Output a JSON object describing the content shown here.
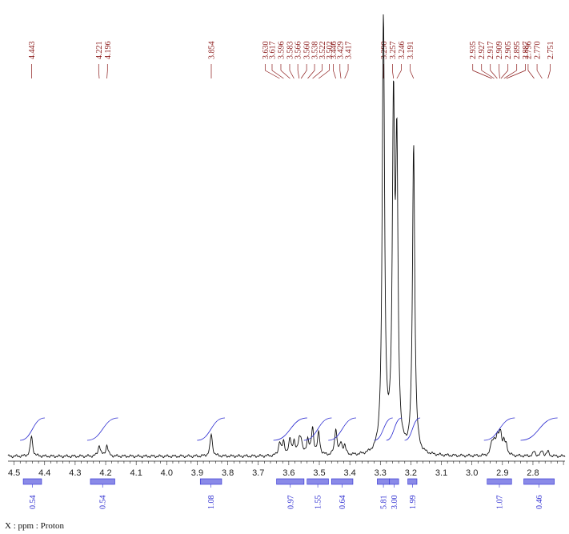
{
  "chart_data": {
    "type": "line",
    "xlabel": "X : ppm : Proton",
    "xlim": [
      4.52,
      2.695
    ],
    "axis_ticks": [
      "4.5",
      "4.4",
      "4.3",
      "4.2",
      "4.1",
      "4.0",
      "3.9",
      "3.8",
      "3.7",
      "3.6",
      "3.5",
      "3.4",
      "3.3",
      "3.2",
      "3.1",
      "3.0",
      "2.9",
      "2.8"
    ],
    "peak_labels": [
      "4.443",
      "4.221",
      "4.196",
      "3.854",
      "3.630",
      "3.617",
      "3.596",
      "3.583",
      "3.566",
      "3.560",
      "3.538",
      "3.522",
      "3.502",
      "3.446",
      "3.429",
      "3.417",
      "3.290",
      "3.257",
      "3.246",
      "3.191",
      "2.935",
      "2.927",
      "2.917",
      "2.909",
      "2.905",
      "2.895",
      "2.887",
      "2.796",
      "2.770",
      "2.751"
    ],
    "integrals": [
      {
        "from": 4.47,
        "to": 4.41,
        "value": "0.54"
      },
      {
        "from": 4.25,
        "to": 4.17,
        "value": "0.54"
      },
      {
        "from": 3.89,
        "to": 3.82,
        "value": "1.08"
      },
      {
        "from": 3.64,
        "to": 3.55,
        "value": "0.97"
      },
      {
        "from": 3.54,
        "to": 3.47,
        "value": "1.55"
      },
      {
        "from": 3.46,
        "to": 3.39,
        "value": "0.64"
      },
      {
        "from": 3.31,
        "to": 3.27,
        "value": "5.81"
      },
      {
        "from": 3.27,
        "to": 3.24,
        "value": "3.00"
      },
      {
        "from": 3.21,
        "to": 3.18,
        "value": "1.99"
      },
      {
        "from": 2.95,
        "to": 2.87,
        "value": "1.07"
      },
      {
        "from": 2.83,
        "to": 2.73,
        "value": "0.46"
      }
    ],
    "peaks": [
      {
        "ppm": 4.443,
        "h": 0.045
      },
      {
        "ppm": 4.221,
        "h": 0.025
      },
      {
        "ppm": 4.196,
        "h": 0.025
      },
      {
        "ppm": 3.854,
        "h": 0.05
      },
      {
        "ppm": 3.63,
        "h": 0.03
      },
      {
        "ppm": 3.617,
        "h": 0.03
      },
      {
        "ppm": 3.596,
        "h": 0.035
      },
      {
        "ppm": 3.583,
        "h": 0.03
      },
      {
        "ppm": 3.566,
        "h": 0.03
      },
      {
        "ppm": 3.56,
        "h": 0.03
      },
      {
        "ppm": 3.538,
        "h": 0.035
      },
      {
        "ppm": 3.522,
        "h": 0.06
      },
      {
        "ppm": 3.502,
        "h": 0.05
      },
      {
        "ppm": 3.446,
        "h": 0.06
      },
      {
        "ppm": 3.429,
        "h": 0.025
      },
      {
        "ppm": 3.417,
        "h": 0.02
      },
      {
        "ppm": 3.29,
        "h": 1.0
      },
      {
        "ppm": 3.257,
        "h": 0.75
      },
      {
        "ppm": 3.246,
        "h": 0.65
      },
      {
        "ppm": 3.191,
        "h": 0.7
      },
      {
        "ppm": 2.935,
        "h": 0.025
      },
      {
        "ppm": 2.927,
        "h": 0.03
      },
      {
        "ppm": 2.917,
        "h": 0.035
      },
      {
        "ppm": 2.909,
        "h": 0.03
      },
      {
        "ppm": 2.905,
        "h": 0.03
      },
      {
        "ppm": 2.895,
        "h": 0.025
      },
      {
        "ppm": 2.887,
        "h": 0.02
      },
      {
        "ppm": 2.796,
        "h": 0.01
      },
      {
        "ppm": 2.77,
        "h": 0.012
      },
      {
        "ppm": 2.751,
        "h": 0.01
      }
    ],
    "colors": {
      "spectrum": "#111111",
      "peak_labels": "#8b1a1a",
      "integrals": "#2a2ad0",
      "integral_bars": "#8a8ae8"
    }
  }
}
